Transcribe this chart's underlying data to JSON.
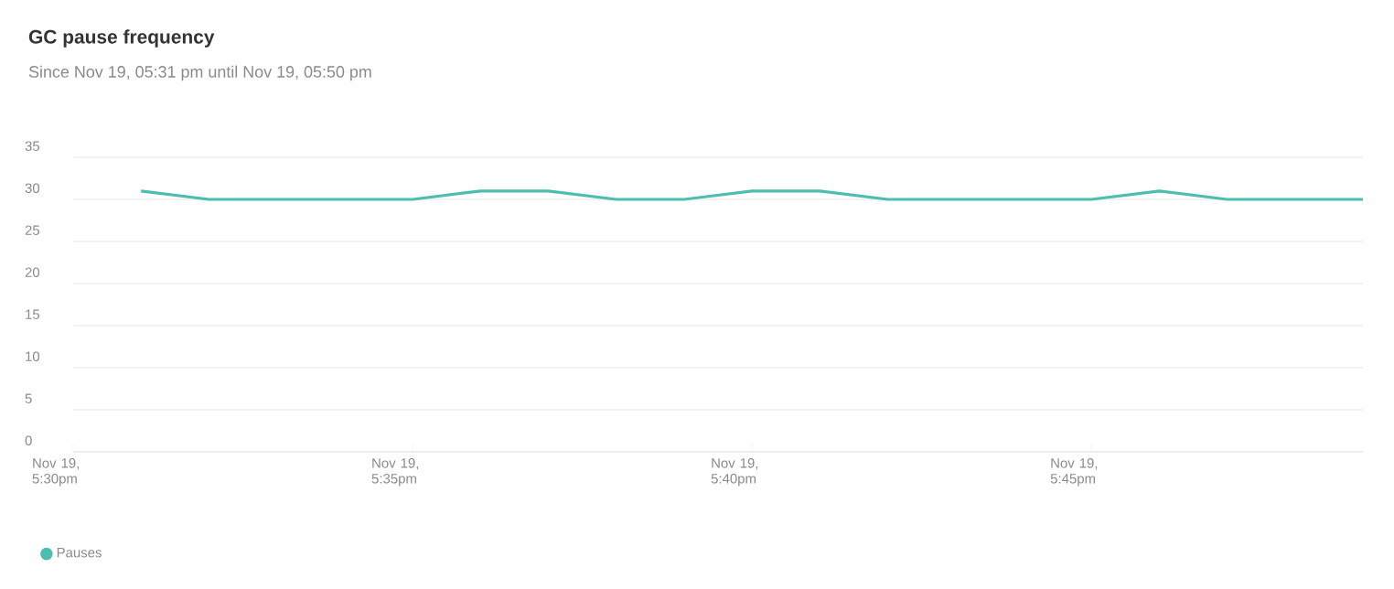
{
  "chart_data": {
    "type": "line",
    "title": "GC pause frequency",
    "subtitle": "Since Nov 19, 05:31 pm until Nov 19, 05:50 pm",
    "categories": [
      "Nov 19, 5:30pm",
      null,
      null,
      null,
      null,
      "Nov 19, 5:35pm",
      null,
      null,
      null,
      null,
      "Nov 19, 5:40pm",
      null,
      null,
      null,
      null,
      "Nov 19, 5:45pm",
      null,
      null,
      null,
      null
    ],
    "series": [
      {
        "name": "Pauses",
        "color": "#4dbdad",
        "values": [
          null,
          31,
          30,
          30,
          30,
          30,
          31,
          31,
          30,
          30,
          31,
          31,
          30,
          30,
          30,
          30,
          31,
          30,
          30,
          30
        ]
      }
    ],
    "ylim": [
      0,
      35
    ],
    "yticks": [
      0,
      5,
      10,
      15,
      20,
      25,
      30,
      35
    ],
    "grid": "y",
    "legend": "bottom left",
    "marker": "none",
    "line_style": "solid"
  }
}
